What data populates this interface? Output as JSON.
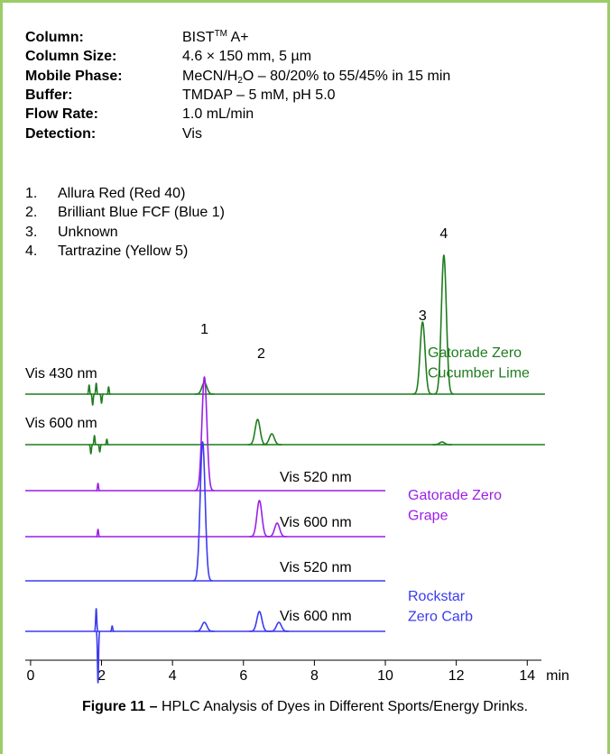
{
  "conditions": [
    {
      "label": "Column:",
      "value": [
        "BIST",
        "TM",
        " A+"
      ]
    },
    {
      "label": "Column Size:",
      "value": [
        "4.6 × 150 mm, 5 µm"
      ]
    },
    {
      "label": "Mobile Phase:",
      "value": [
        "MeCN/H",
        "2",
        "O – 80/20% to 55/45% in 15 min"
      ]
    },
    {
      "label": "Buffer:",
      "value": [
        "TMDAP – 5 mM, pH 5.0"
      ]
    },
    {
      "label": "Flow Rate:",
      "value": [
        "1.0 mL/min"
      ]
    },
    {
      "label": "Detection:",
      "value": [
        "Vis"
      ]
    }
  ],
  "peak_list": [
    {
      "number": "1.",
      "name": "Allura Red (Red 40)"
    },
    {
      "number": "2.",
      "name": "Brilliant Blue FCF (Blue 1)"
    },
    {
      "number": "3.",
      "name": "Unknown"
    },
    {
      "number": "4.",
      "name": "Tartrazine (Yellow 5)"
    }
  ],
  "chart_data": {
    "type": "chromatogram",
    "xlabel": "min",
    "xlim": [
      -0.15,
      14.4
    ],
    "xticks": [
      0,
      2,
      4,
      6,
      8,
      10,
      12,
      14
    ],
    "peak_labels": [
      {
        "label": "1",
        "x": 4.9
      },
      {
        "label": "2",
        "x": 6.5
      },
      {
        "label": "3",
        "x": 11.05
      },
      {
        "label": "4",
        "x": 11.65
      }
    ],
    "groups": [
      {
        "name": [
          "Gatorade Zero",
          "Cucumber Lime"
        ],
        "color": "#1f7d1f",
        "traces": [
          {
            "name": "Vis 430 nm",
            "xrange": [
              -0.15,
              14.5
            ],
            "x": [
              1.65,
              1.75,
              1.85,
              2.0,
              2.2,
              4.9,
              11.05,
              11.65
            ],
            "values": [
              10,
              -12,
              12,
              -10,
              8,
              13,
              80,
              154
            ]
          },
          {
            "name": "Vis 600 nm",
            "xrange": [
              -0.15,
              14.5
            ],
            "x": [
              1.7,
              1.8,
              1.95,
              2.15,
              6.4,
              6.8,
              11.6
            ],
            "values": [
              -10,
              10,
              -8,
              6,
              28,
              12,
              3
            ]
          }
        ]
      },
      {
        "name": [
          "Gatorade Zero",
          "Grape"
        ],
        "color": "#9b1fe8",
        "traces": [
          {
            "name": "Vis 520 nm",
            "xrange": [
              -0.15,
              10
            ],
            "x": [
              1.9,
              4.9
            ],
            "values": [
              8,
              126
            ]
          },
          {
            "name": "Vis 600 nm",
            "xrange": [
              -0.15,
              10
            ],
            "x": [
              1.9,
              6.45,
              6.95
            ],
            "values": [
              8,
              40,
              15
            ]
          }
        ]
      },
      {
        "name": [
          "Rockstar",
          "Zero Carb"
        ],
        "color": "#3b3bef",
        "traces": [
          {
            "name": "Vis 520 nm",
            "xrange": [
              -0.15,
              10
            ],
            "x": [
              4.85
            ],
            "values": [
              154
            ]
          },
          {
            "name": "Vis 600 nm",
            "xrange": [
              -0.15,
              10
            ],
            "x": [
              1.85,
              1.9,
              2.3,
              4.9,
              6.45,
              7.0
            ],
            "values": [
              25,
              -57,
              6,
              10,
              22,
              10
            ]
          }
        ]
      }
    ]
  },
  "caption": {
    "label": "Figure 11 –",
    "text": " HPLC Analysis of Dyes in Different Sports/Energy Drinks."
  }
}
